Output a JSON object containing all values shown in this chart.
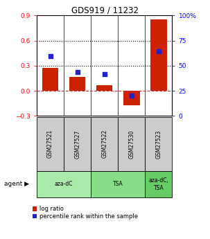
{
  "title": "GDS919 / 11232",
  "samples": [
    "GSM27521",
    "GSM27527",
    "GSM27522",
    "GSM27530",
    "GSM27523"
  ],
  "log_ratio": [
    0.27,
    0.17,
    0.07,
    -0.17,
    0.85
  ],
  "percentile_rank": [
    59.5,
    43.5,
    41.5,
    20.0,
    64.5
  ],
  "agent_groups": [
    {
      "label": "aza-dC",
      "span": [
        0,
        2
      ],
      "color": "#aaeaaa"
    },
    {
      "label": "TSA",
      "span": [
        2,
        4
      ],
      "color": "#88dd88"
    },
    {
      "label": "aza-dC,\nTSA",
      "span": [
        4,
        5
      ],
      "color": "#66cc66"
    }
  ],
  "bar_color": "#cc2200",
  "dot_color": "#2222cc",
  "left_ylim": [
    -0.3,
    0.9
  ],
  "right_ylim": [
    0,
    100
  ],
  "left_yticks": [
    -0.3,
    0.0,
    0.3,
    0.6,
    0.9
  ],
  "right_yticks": [
    0,
    25,
    50,
    75,
    100
  ],
  "hlines": [
    0.3,
    0.6
  ],
  "zero_line_color": "#cc3333",
  "legend_labels": [
    "log ratio",
    "percentile rank within the sample"
  ],
  "sample_box_color": "#cccccc",
  "bar_width": 0.6
}
